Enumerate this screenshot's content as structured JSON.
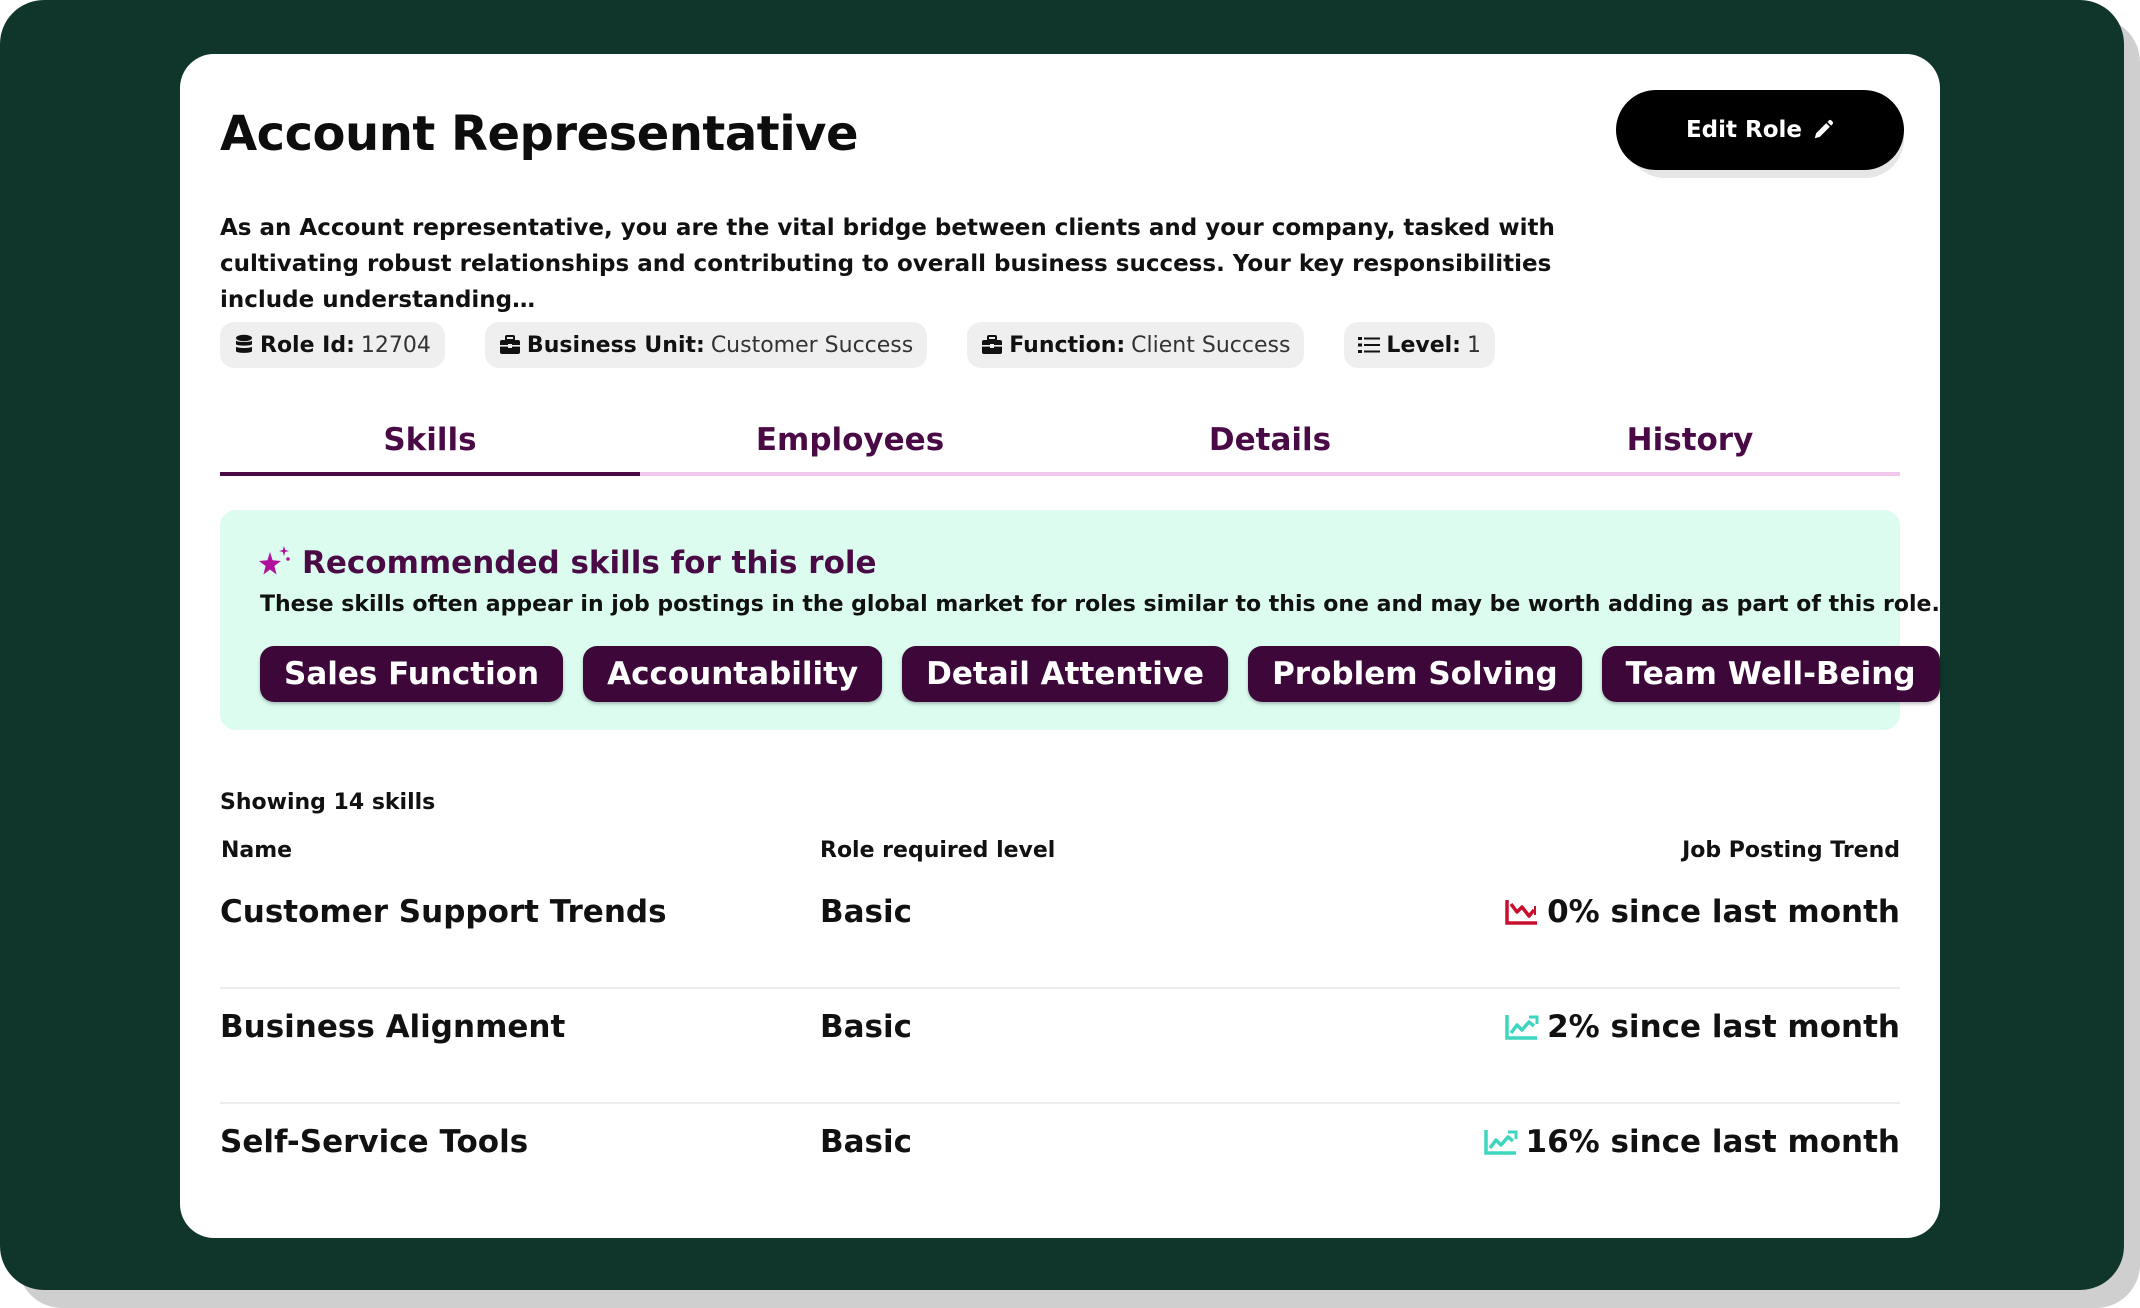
{
  "role": {
    "title": "Account Representative",
    "edit_label": "Edit Role",
    "description": "As an Account representative, you are the vital bridge between clients and your company, tasked with cultivating robust relationships and contributing to overall business success. Your key responsibilities include understanding…"
  },
  "meta": {
    "role_id": {
      "label": "Role Id:",
      "value": "12704",
      "icon": "database-icon"
    },
    "business_unit": {
      "label": "Business Unit:",
      "value": "Customer Success",
      "icon": "briefcase-icon"
    },
    "function": {
      "label": "Function:",
      "value": "Client Success",
      "icon": "briefcase-icon"
    },
    "level": {
      "label": "Level:",
      "value": "1",
      "icon": "list-icon"
    }
  },
  "tabs": [
    {
      "label": "Skills",
      "active": true
    },
    {
      "label": "Employees",
      "active": false
    },
    {
      "label": "Details",
      "active": false
    },
    {
      "label": "History",
      "active": false
    }
  ],
  "recommended": {
    "title": "Recommended skills for this role",
    "subtitle": "These skills often appear in job postings in the global market for roles similar to this one and may be worth adding as part of this role.",
    "skills": [
      "Sales Function",
      "Accountability",
      "Detail Attentive",
      "Problem Solving",
      "Team Well-Being"
    ]
  },
  "skills_table": {
    "count_label": "Showing 14 skills",
    "headers": {
      "name": "Name",
      "level": "Role required level",
      "trend": "Job Posting Trend"
    },
    "rows": [
      {
        "name": "Customer Support Trends",
        "level": "Basic",
        "trend": "0% since last month",
        "direction": "down"
      },
      {
        "name": "Business Alignment",
        "level": "Basic",
        "trend": "2% since last month",
        "direction": "up"
      },
      {
        "name": "Self-Service Tools",
        "level": "Basic",
        "trend": "16% since last month",
        "direction": "up"
      }
    ]
  },
  "colors": {
    "background": "#10352a",
    "accent_purple": "#4a0a46",
    "pill_bg": "#3d0739",
    "reco_bg": "#dbfcef",
    "trend_down": "#c8102e",
    "trend_up": "#3fd6c0"
  }
}
